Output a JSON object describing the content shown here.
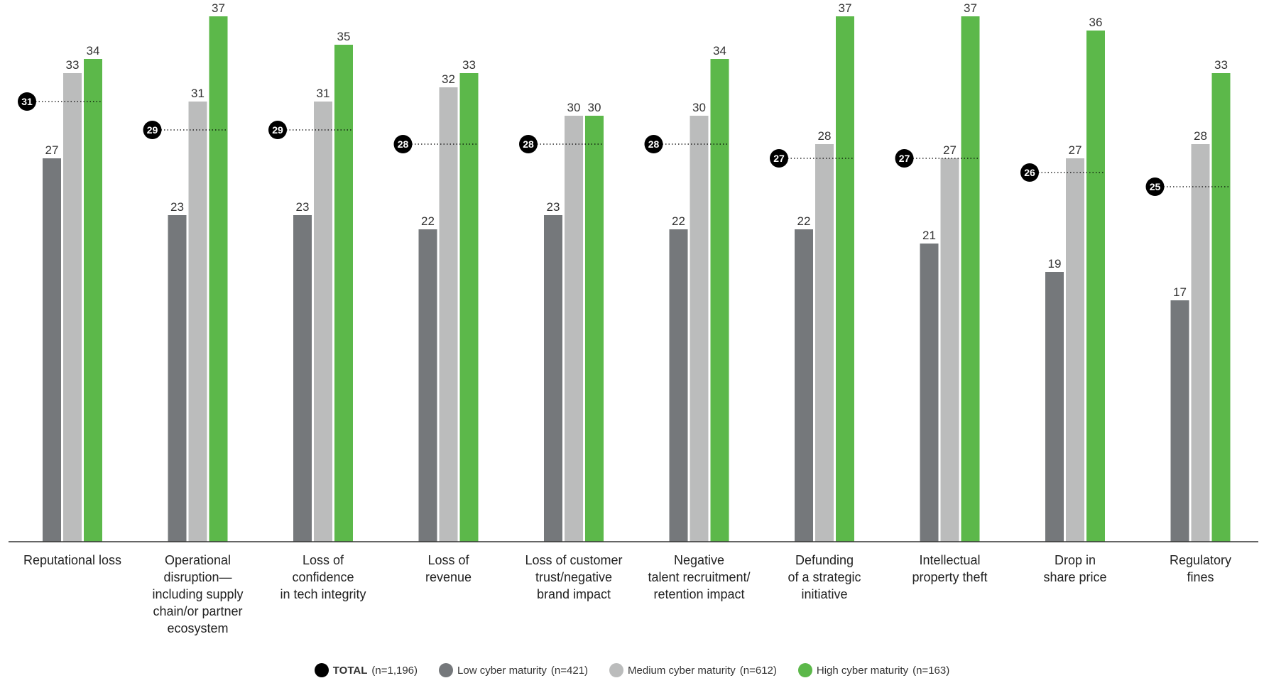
{
  "chart_data": {
    "type": "bar",
    "categories": [
      [
        "Reputational loss"
      ],
      [
        "Operational",
        "disruption—",
        "including supply",
        "chain/or partner",
        "ecosystem"
      ],
      [
        "Loss of",
        "confidence",
        "in tech integrity"
      ],
      [
        "Loss of",
        "revenue"
      ],
      [
        "Loss of customer",
        "trust/negative",
        "brand impact"
      ],
      [
        "Negative",
        "talent recruitment/",
        "retention impact"
      ],
      [
        "Defunding",
        "of a strategic",
        "initiative"
      ],
      [
        "Intellectual",
        "property theft"
      ],
      [
        "Drop in",
        "share price"
      ],
      [
        "Regulatory",
        "fines"
      ]
    ],
    "series": [
      {
        "name": "Low cyber maturity",
        "n": "(n=421)",
        "values": [
          27,
          23,
          23,
          22,
          23,
          22,
          22,
          21,
          19,
          17
        ]
      },
      {
        "name": "Medium cyber maturity",
        "n": "(n=612)",
        "values": [
          33,
          31,
          31,
          32,
          30,
          30,
          28,
          27,
          27,
          28
        ]
      },
      {
        "name": "High cyber maturity",
        "n": "(n=163)",
        "values": [
          34,
          37,
          35,
          33,
          30,
          34,
          37,
          37,
          36,
          33
        ]
      }
    ],
    "total": {
      "name": "TOTAL",
      "n": "(n=1,196)",
      "values": [
        31,
        29,
        29,
        28,
        28,
        28,
        27,
        27,
        26,
        25
      ]
    },
    "ylim": [
      0,
      38
    ],
    "grid": false,
    "legend_position": "bottom",
    "colors": {
      "low": "#75787b",
      "medium": "#bbbcbc",
      "high": "#5cb84a",
      "total": "#000000"
    }
  }
}
